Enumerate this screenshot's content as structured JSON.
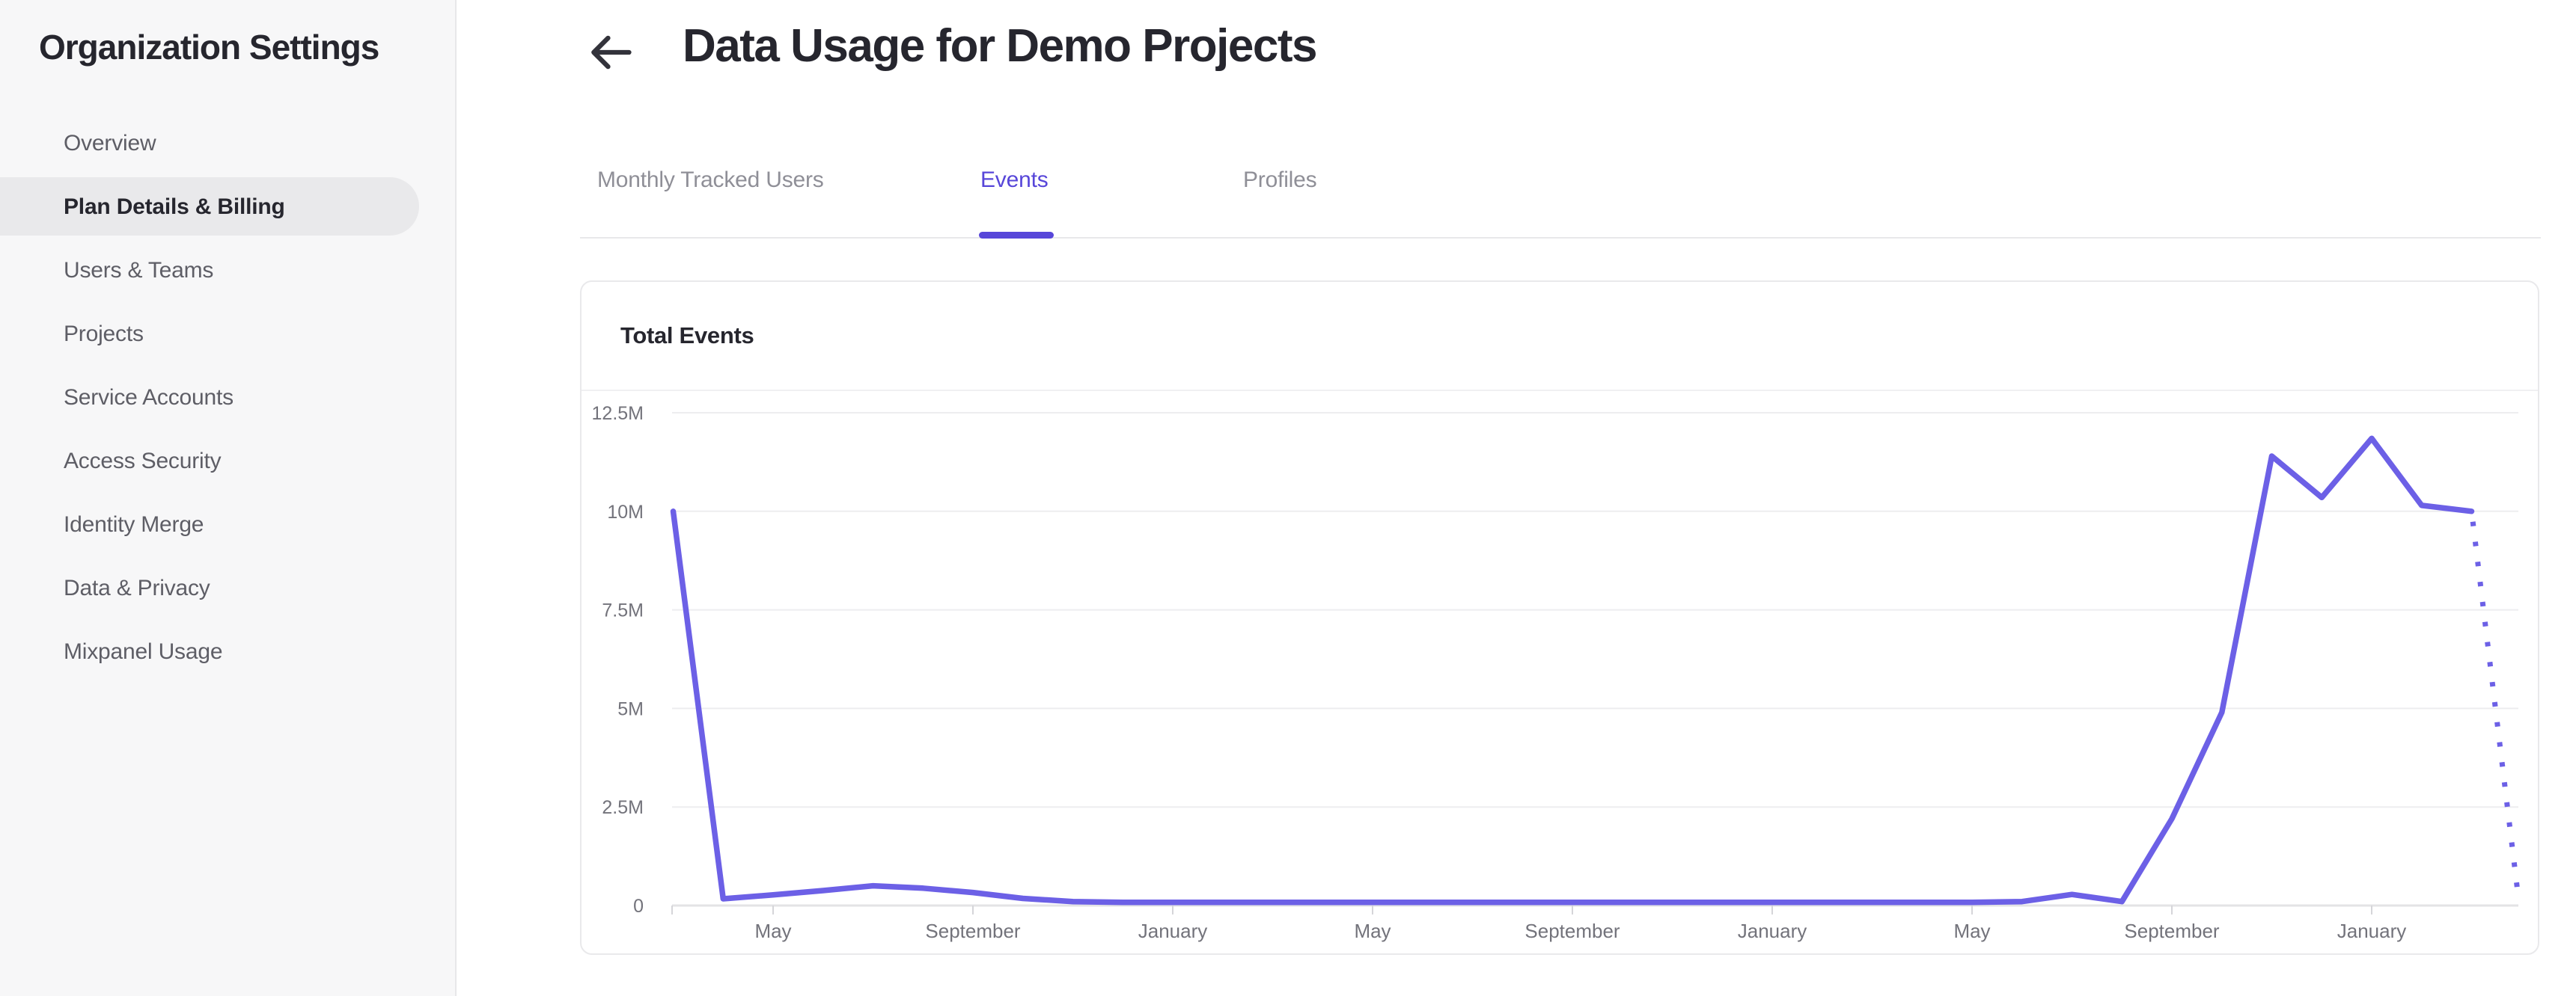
{
  "sidebar": {
    "title": "Organization Settings",
    "items": [
      {
        "label": "Overview",
        "active": false
      },
      {
        "label": "Plan Details & Billing",
        "active": true
      },
      {
        "label": "Users & Teams",
        "active": false
      },
      {
        "label": "Projects",
        "active": false
      },
      {
        "label": "Service Accounts",
        "active": false
      },
      {
        "label": "Access Security",
        "active": false
      },
      {
        "label": "Identity Merge",
        "active": false
      },
      {
        "label": "Data & Privacy",
        "active": false
      },
      {
        "label": "Mixpanel Usage",
        "active": false
      }
    ]
  },
  "header": {
    "title": "Data Usage for Demo Projects",
    "back_icon": "arrow-left"
  },
  "tabs": [
    {
      "label": "Monthly Tracked Users",
      "active": false
    },
    {
      "label": "Events",
      "active": true
    },
    {
      "label": "Profiles",
      "active": false
    }
  ],
  "card": {
    "title": "Total Events"
  },
  "colors": {
    "accent": "#5746D9",
    "line": "#6C60E6",
    "sidebar_bg": "#F7F7F8",
    "active_pill": "#E9E9EB",
    "heading_text": "#26262E",
    "muted_text": "#5E5E66",
    "tab_inactive": "#8F8F97",
    "gridline": "#EDEDEF",
    "axis_line": "#E3E3E5",
    "tick_mark": "#D5D5D9",
    "axis_label": "#73737B"
  },
  "chart_data": {
    "type": "line",
    "title": "Total Events",
    "legend": "none",
    "grid": "horizontal",
    "x_interval": "monthly; labeled ticks every 4 months; series starts 2 months before first May tick",
    "ylim_millions": [
      0,
      12.5
    ],
    "y_ticks": [
      {
        "label": "0",
        "value": 0
      },
      {
        "label": "2.5M",
        "value": 2.5
      },
      {
        "label": "5M",
        "value": 5
      },
      {
        "label": "7.5M",
        "value": 7.5
      },
      {
        "label": "10M",
        "value": 10
      },
      {
        "label": "12.5M",
        "value": 12.5
      }
    ],
    "x_ticks": [
      {
        "label": "May",
        "month_index": 2
      },
      {
        "label": "September",
        "month_index": 6
      },
      {
        "label": "January",
        "month_index": 10
      },
      {
        "label": "May",
        "month_index": 14
      },
      {
        "label": "September",
        "month_index": 18
      },
      {
        "label": "January",
        "month_index": 22
      },
      {
        "label": "May",
        "month_index": 26
      },
      {
        "label": "September",
        "month_index": 30
      },
      {
        "label": "January",
        "month_index": 34
      }
    ],
    "series": [
      {
        "name": "Total Events",
        "color": "#6C60E6",
        "values_millions": [
          10.0,
          0.17,
          0.27,
          0.38,
          0.5,
          0.44,
          0.33,
          0.18,
          0.1,
          0.08,
          0.08,
          0.08,
          0.08,
          0.08,
          0.08,
          0.08,
          0.08,
          0.08,
          0.08,
          0.08,
          0.08,
          0.08,
          0.08,
          0.08,
          0.08,
          0.08,
          0.08,
          0.1,
          0.28,
          0.1,
          2.2,
          4.9,
          11.4,
          10.35,
          11.85,
          10.15,
          10.0
        ],
        "projected_value_millions": 0.2,
        "projected_style": "dotted"
      }
    ]
  }
}
